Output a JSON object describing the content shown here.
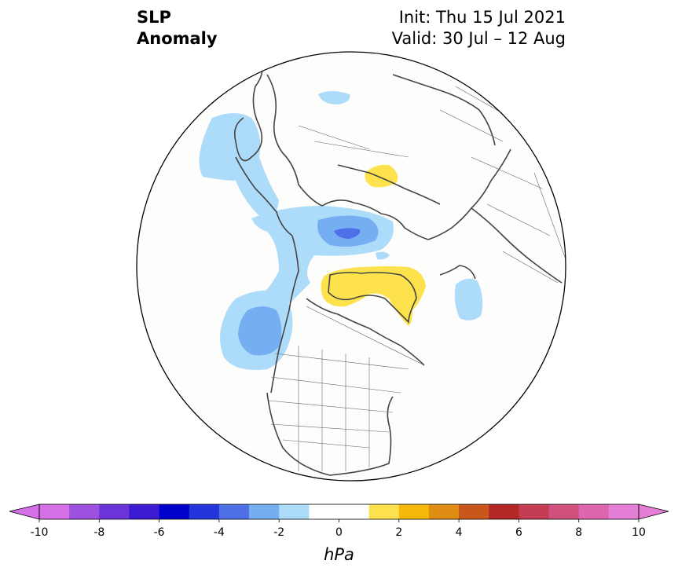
{
  "title": {
    "left_line1": "SLP",
    "left_line2": "Anomaly",
    "right_line1": "Init: Thu 15 Jul 2021",
    "right_line2": "Valid: 30 Jul – 12 Aug"
  },
  "map": {
    "projection": "north-polar-stereographic",
    "background_color": "#fdfdfb",
    "coast_color": "#444444",
    "anomaly_regions": [
      {
        "name": "alaska-west-negative",
        "value": "-1 to -2"
      },
      {
        "name": "beaufort-negative",
        "value": "-3 to -4"
      },
      {
        "name": "northeast-pacific-negative",
        "value": "-2 to -3"
      },
      {
        "name": "greenland-positive",
        "value": "1 to 2"
      },
      {
        "name": "siberia-positive",
        "value": "1 to 2"
      },
      {
        "name": "north-atlantic-negative",
        "value": "-1 to -2"
      }
    ]
  },
  "colorbar": {
    "unit": "hPa",
    "ticks": [
      "-10",
      "-8",
      "-6",
      "-4",
      "-2",
      "0",
      "2",
      "4",
      "6",
      "8",
      "10"
    ],
    "colors": [
      "#d670e6",
      "#9e50e0",
      "#6a34d8",
      "#3c1ad2",
      "#0000cc",
      "#2436db",
      "#4f6fe6",
      "#76aef2",
      "#addcfb",
      "#ffffff",
      "#ffffff",
      "#fde24d",
      "#f4b90a",
      "#e08e13",
      "#c9571c",
      "#b32727",
      "#c33c52",
      "#d0507e",
      "#dd66ae",
      "#e57fd6"
    ],
    "under_color": "#d670e6",
    "over_color": "#e57fd6"
  }
}
